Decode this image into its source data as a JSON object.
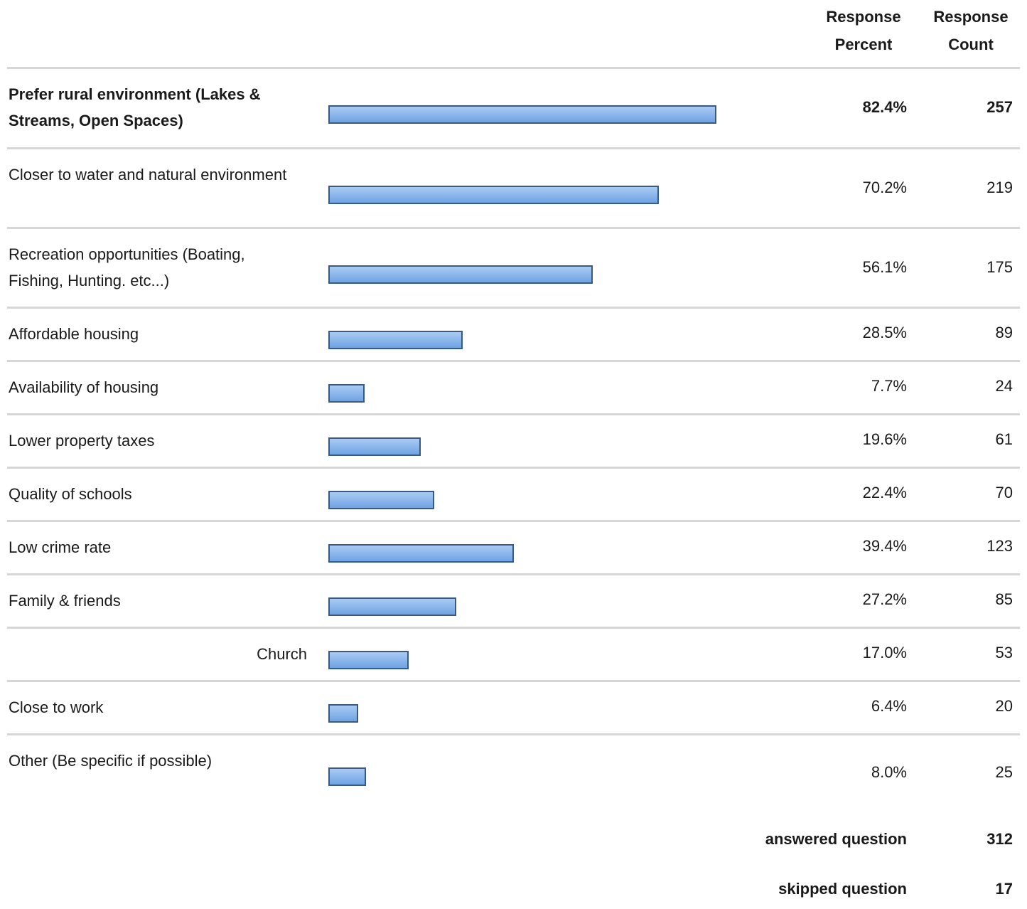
{
  "table": {
    "headers": [
      "Response Percent",
      "Response Count"
    ],
    "rows": [
      {
        "label": "Prefer rural environment (Lakes & Streams, Open Spaces)",
        "percent": 82.4,
        "percent_label": "82.4%",
        "count": 257
      },
      {
        "label": "Closer to water and natural environment",
        "percent": 70.2,
        "percent_label": "70.2%",
        "count": 219
      },
      {
        "label": "Recreation opportunities (Boating, Fishing, Hunting. etc...)",
        "percent": 56.1,
        "percent_label": "56.1%",
        "count": 175
      },
      {
        "label": "Affordable housing",
        "percent": 28.5,
        "percent_label": "28.5%",
        "count": 89
      },
      {
        "label": "Availability of housing",
        "percent": 7.7,
        "percent_label": "7.7%",
        "count": 24
      },
      {
        "label": "Lower property taxes",
        "percent": 19.6,
        "percent_label": "19.6%",
        "count": 61
      },
      {
        "label": "Quality of schools",
        "percent": 22.4,
        "percent_label": "22.4%",
        "count": 70
      },
      {
        "label": "Low crime rate",
        "percent": 39.4,
        "percent_label": "39.4%",
        "count": 123
      },
      {
        "label": "Family & friends",
        "percent": 27.2,
        "percent_label": "27.2%",
        "count": 85
      },
      {
        "label": "Church",
        "percent": 17.0,
        "percent_label": "17.0%",
        "count": 53
      },
      {
        "label": "Close to work",
        "percent": 6.4,
        "percent_label": "6.4%",
        "count": 20
      },
      {
        "label": "Other (Be specific if possible)",
        "percent": 8.0,
        "percent_label": "8.0%",
        "count": 25
      }
    ],
    "summary": [
      {
        "label": "answered question",
        "count": 312
      },
      {
        "label": "skipped question",
        "count": 17
      }
    ]
  }
}
